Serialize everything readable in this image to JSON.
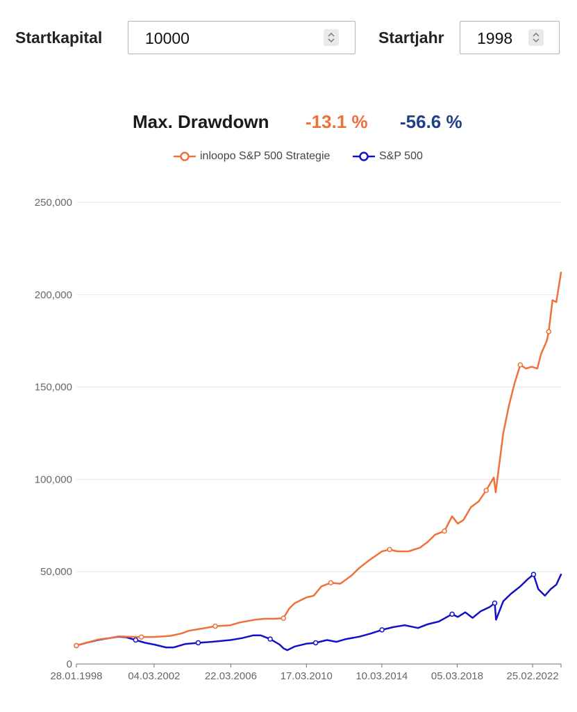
{
  "form": {
    "startkapital_label": "Startkapital",
    "startkapital_value": "10000",
    "startjahr_label": "Startjahr",
    "startjahr_value": "1998"
  },
  "drawdown": {
    "label": "Max. Drawdown",
    "strategy_value": "-13.1 %",
    "sp500_value": "-56.6 %"
  },
  "colors": {
    "strategy": "#f0703a",
    "sp500": "#1410c8",
    "sp500_text": "#1f3f87",
    "grid": "#e3e7ef"
  },
  "chart_data": {
    "type": "line",
    "title": "",
    "xlabel": "",
    "ylabel": "",
    "x_tick_labels": [
      "28.01.1998",
      "04.03.2002",
      "22.03.2006",
      "17.03.2010",
      "10.03.2014",
      "05.03.2018",
      "25.02.2022"
    ],
    "x_ticks_year": [
      1998.07,
      2002.17,
      2006.22,
      2010.21,
      2014.19,
      2018.17,
      2022.15
    ],
    "y_tick_labels": [
      "0",
      "50,000",
      "100,000",
      "150,000",
      "200,000",
      "250,000"
    ],
    "ylim": [
      0,
      250000
    ],
    "xlim": [
      1998.07,
      2023.65
    ],
    "grid": true,
    "legend_position": "top-center",
    "series": [
      {
        "name": "inloopo S&P 500 Strategie",
        "x": [
          1998.07,
          1998.6,
          1999.2,
          1999.8,
          2000.3,
          2000.8,
          2001.5,
          2002.2,
          2003.0,
          2003.6,
          2004.0,
          2004.7,
          2005.4,
          2006.2,
          2006.7,
          2007.5,
          2008.0,
          2008.5,
          2009.0,
          2009.3,
          2009.6,
          2010.2,
          2010.6,
          2011.0,
          2011.5,
          2012.0,
          2012.6,
          2013.0,
          2013.5,
          2014.2,
          2014.6,
          2015.0,
          2015.6,
          2016.2,
          2016.6,
          2017.0,
          2017.5,
          2017.9,
          2018.2,
          2018.5,
          2018.9,
          2019.3,
          2019.7,
          2020.1,
          2020.2,
          2020.6,
          2020.9,
          2021.2,
          2021.5,
          2021.8,
          2022.1,
          2022.4,
          2022.6,
          2022.9,
          2023.0,
          2023.2,
          2023.4,
          2023.65
        ],
        "values": [
          10000,
          11500,
          13200,
          14000,
          15000,
          14800,
          14600,
          14700,
          15200,
          16500,
          18000,
          19200,
          20500,
          21000,
          22500,
          24000,
          24500,
          24500,
          24800,
          30000,
          33000,
          36000,
          37000,
          42000,
          44000,
          43500,
          48000,
          52000,
          56000,
          61000,
          62000,
          61000,
          61000,
          63000,
          66000,
          70000,
          72000,
          80000,
          76000,
          78000,
          85000,
          88000,
          94000,
          101000,
          93000,
          125000,
          140000,
          152000,
          162000,
          160000,
          161000,
          160000,
          168000,
          175000,
          180000,
          197000,
          196000,
          212000
        ]
      },
      {
        "name": "S&P 500",
        "x": [
          1998.07,
          1998.6,
          1999.2,
          1999.8,
          2000.3,
          2000.7,
          2001.2,
          2001.7,
          2002.2,
          2002.8,
          2003.2,
          2003.8,
          2004.5,
          2005.2,
          2006.2,
          2006.8,
          2007.4,
          2007.8,
          2008.3,
          2008.8,
          2009.0,
          2009.2,
          2009.6,
          2010.2,
          2010.7,
          2011.3,
          2011.8,
          2012.3,
          2013.0,
          2013.6,
          2014.2,
          2014.8,
          2015.4,
          2016.1,
          2016.6,
          2017.2,
          2017.9,
          2018.2,
          2018.6,
          2018.98,
          2019.4,
          2019.9,
          2020.15,
          2020.22,
          2020.6,
          2021.0,
          2021.5,
          2021.9,
          2022.2,
          2022.45,
          2022.8,
          2023.1,
          2023.4,
          2023.65
        ],
        "values": [
          10000,
          11500,
          13000,
          14000,
          14800,
          14500,
          13000,
          11500,
          10500,
          9000,
          9000,
          10800,
          11500,
          12000,
          13000,
          14000,
          15500,
          15500,
          13500,
          10500,
          8500,
          7500,
          9500,
          11000,
          11500,
          13000,
          12000,
          13500,
          14800,
          16500,
          18500,
          20000,
          21000,
          19500,
          21500,
          23000,
          27000,
          25500,
          28000,
          25000,
          28500,
          31000,
          33000,
          24000,
          34000,
          38000,
          42000,
          46000,
          48500,
          40500,
          37000,
          40500,
          43000,
          48500
        ]
      }
    ]
  }
}
